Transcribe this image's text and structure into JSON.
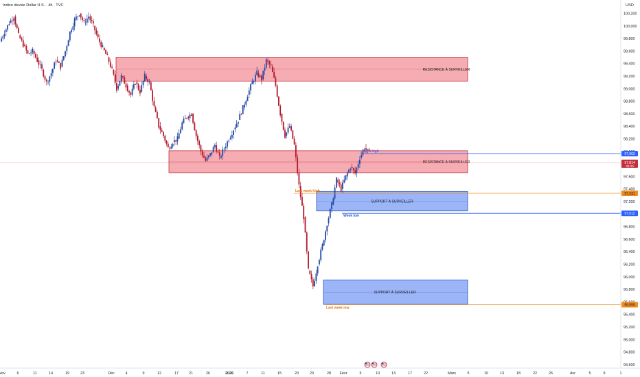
{
  "header": {
    "title": "Indice devise Dollar U.S. · 4h · TVC",
    "currency": "USD"
  },
  "colors": {
    "up": "#2447a6",
    "down": "#b2182b",
    "resistance_fill": "#f4a3aa",
    "resistance_stroke": "#c2303c",
    "support_fill": "#90adf5",
    "support_stroke": "#2d56c7",
    "blue_line": "#2962ff",
    "orange_line": "#f08a1c",
    "price_badge": "#c2303c",
    "text_muted": "#787b86"
  },
  "chart_data": {
    "type": "candlestick",
    "y_axis": {
      "ylim": [
        94.55,
        100.22
      ],
      "ticks": [
        "100,200",
        "100,000",
        "99,800",
        "99,600",
        "99,400",
        "99,200",
        "99,000",
        "98,800",
        "98,600",
        "98,400",
        "98,200",
        "98,000",
        "97,800",
        "97,600",
        "97,400",
        "97,200",
        "97,000",
        "96,800",
        "96,600",
        "96,400",
        "96,200",
        "96,000",
        "95,800",
        "95,600",
        "95,400",
        "95,200",
        "95,000",
        "94,800",
        "94,600"
      ],
      "tick_values": [
        100.2,
        100.0,
        99.8,
        99.6,
        99.4,
        99.2,
        99.0,
        98.8,
        98.6,
        98.4,
        98.2,
        98.0,
        97.8,
        97.6,
        97.4,
        97.2,
        97.0,
        96.8,
        96.6,
        96.4,
        96.2,
        96.0,
        95.8,
        95.6,
        95.4,
        95.2,
        95.0,
        94.8,
        94.6
      ]
    },
    "x_axis": {
      "ticks": [
        "Nov",
        "6",
        "11",
        "14",
        "19",
        "23",
        "Déc",
        "4",
        "9",
        "12",
        "17",
        "21",
        "26",
        "2026",
        "7",
        "11",
        "15",
        "20",
        "23",
        "28",
        "Févr",
        "5",
        "10",
        "13",
        "17",
        "22",
        "Mars",
        "5",
        "10",
        "13",
        "18",
        "22",
        "26",
        "Avr",
        "5",
        "9",
        "1"
      ],
      "bold": [
        "2026"
      ]
    },
    "series": [
      {
        "kind": "ohlc_segment",
        "points": [
          [
            99.75,
            99.9
          ],
          [
            99.9,
            100.05
          ],
          [
            100.05,
            100.15
          ],
          [
            100.15,
            99.85
          ],
          [
            99.85,
            99.7
          ],
          [
            99.7,
            99.55
          ],
          [
            99.55,
            99.6
          ],
          [
            99.6,
            99.45
          ],
          [
            99.45,
            99.3
          ],
          [
            99.3,
            99.1
          ],
          [
            99.1,
            99.25
          ],
          [
            99.25,
            99.45
          ],
          [
            99.45,
            99.35
          ],
          [
            99.35,
            99.6
          ],
          [
            99.6,
            99.9
          ],
          [
            99.9,
            100.1
          ],
          [
            100.1,
            100.2
          ],
          [
            100.2,
            100.05
          ],
          [
            100.05,
            100.15
          ],
          [
            100.15,
            100.0
          ],
          [
            100.0,
            99.8
          ],
          [
            99.8,
            99.65
          ],
          [
            99.65,
            99.5
          ],
          [
            99.5,
            99.3
          ],
          [
            99.3,
            99.0
          ],
          [
            99.0,
            99.2
          ],
          [
            99.2,
            99.05
          ],
          [
            99.05,
            98.9
          ],
          [
            98.9,
            99.1
          ],
          [
            99.1,
            98.95
          ],
          [
            98.95,
            99.2
          ],
          [
            99.2,
            99.1
          ],
          [
            99.1,
            98.7
          ],
          [
            98.7,
            98.4
          ],
          [
            98.4,
            98.25
          ],
          [
            98.25,
            98.05
          ],
          [
            98.05,
            98.15
          ],
          [
            98.15,
            98.2
          ],
          [
            98.2,
            98.45
          ],
          [
            98.45,
            98.55
          ],
          [
            98.55,
            98.6
          ],
          [
            98.6,
            98.25
          ],
          [
            98.25,
            98.0
          ],
          [
            98.0,
            97.85
          ],
          [
            97.85,
            97.95
          ],
          [
            97.95,
            98.1
          ],
          [
            98.1,
            97.9
          ],
          [
            97.9,
            98.05
          ],
          [
            98.05,
            98.2
          ],
          [
            98.2,
            98.35
          ],
          [
            98.35,
            98.5
          ],
          [
            98.5,
            98.7
          ],
          [
            98.7,
            98.9
          ],
          [
            98.9,
            99.1
          ],
          [
            99.1,
            99.25
          ],
          [
            99.25,
            99.15
          ],
          [
            99.15,
            99.45
          ],
          [
            99.45,
            99.35
          ],
          [
            99.35,
            99.05
          ],
          [
            99.05,
            98.6
          ],
          [
            98.6,
            98.25
          ],
          [
            98.25,
            98.4
          ],
          [
            98.4,
            98.1
          ],
          [
            98.1,
            97.45
          ],
          [
            97.45,
            96.95
          ],
          [
            96.95,
            96.1
          ],
          [
            96.1,
            95.85
          ],
          [
            95.85,
            96.2
          ],
          [
            96.2,
            96.5
          ],
          [
            96.5,
            96.85
          ],
          [
            96.85,
            97.15
          ],
          [
            97.15,
            97.55
          ],
          [
            97.55,
            97.4
          ],
          [
            97.4,
            97.6
          ],
          [
            97.6,
            97.75
          ],
          [
            97.75,
            97.65
          ],
          [
            97.65,
            97.9
          ],
          [
            97.9,
            98.05
          ],
          [
            98.05,
            97.98
          ]
        ]
      }
    ],
    "zones": [
      {
        "type": "resistance",
        "label": "RESISTANCE À SURVEILLER",
        "top": 99.5,
        "bottom": 99.12
      },
      {
        "type": "resistance",
        "label": "RÉSISTANCE À SURVEILLER",
        "top": 98.01,
        "bottom": 97.66
      },
      {
        "type": "support",
        "label": "SUPPORT À SURVEILLER",
        "top": 97.36,
        "bottom": 97.05
      },
      {
        "type": "support",
        "label": "SUPPORT À SURVEILLER",
        "top": 95.95,
        "bottom": 95.56
      }
    ],
    "levels": [
      {
        "label": "Week high",
        "value": 97.963,
        "badge": "97,963",
        "color": "blue"
      },
      {
        "label": "Last week high",
        "value": 97.331,
        "badge": "97,331",
        "color": "orange"
      },
      {
        "label": "Week low",
        "value": 97.012,
        "badge": "97,012",
        "color": "blue"
      },
      {
        "label": "Last week low",
        "value": 95.555,
        "badge": "95,555",
        "color": "orange"
      }
    ],
    "current_price": {
      "value": 97.814,
      "badge": "97,814",
      "countdown": "35:20"
    }
  }
}
